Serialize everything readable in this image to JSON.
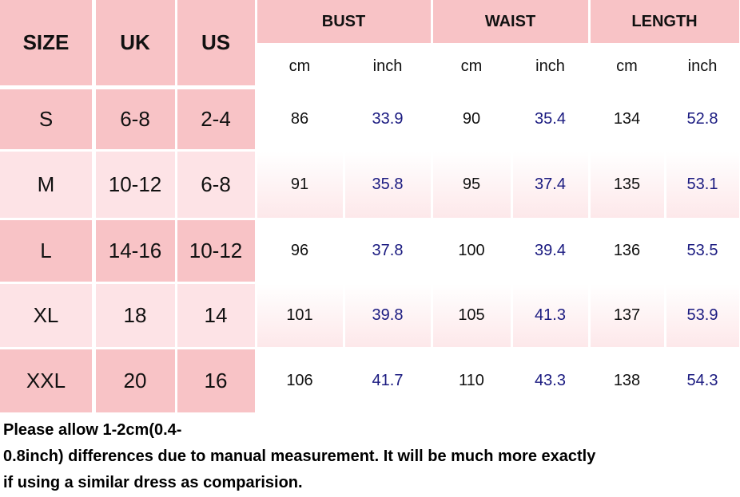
{
  "header": {
    "size": "SIZE",
    "uk": "UK",
    "us": "US",
    "groups": [
      {
        "name": "BUST",
        "units": [
          "cm",
          "inch"
        ]
      },
      {
        "name": "WAIST",
        "units": [
          "cm",
          "inch"
        ]
      },
      {
        "name": "LENGTH",
        "units": [
          "cm",
          "inch"
        ]
      }
    ]
  },
  "rows": [
    [
      "S",
      "6-8",
      "2-4",
      86,
      33.9,
      90,
      35.4,
      134,
      52.8
    ],
    [
      "M",
      "10-12",
      "6-8",
      91,
      35.8,
      95,
      37.4,
      135,
      53.1
    ],
    [
      "L",
      "14-16",
      "10-12",
      96,
      37.8,
      100,
      39.4,
      136,
      53.5
    ],
    [
      "XL",
      "18",
      "14",
      101,
      39.8,
      105,
      41.3,
      137,
      53.9
    ],
    [
      "XXL",
      "20",
      "16",
      106,
      41.7,
      110,
      43.3,
      138,
      54.3
    ]
  ],
  "note": [
    "Please allow 1-2cm(0.4-",
    "0.8inch) differences due to manual measurement. It will be much more exactly",
    "if using a similar dress as comparision."
  ]
}
